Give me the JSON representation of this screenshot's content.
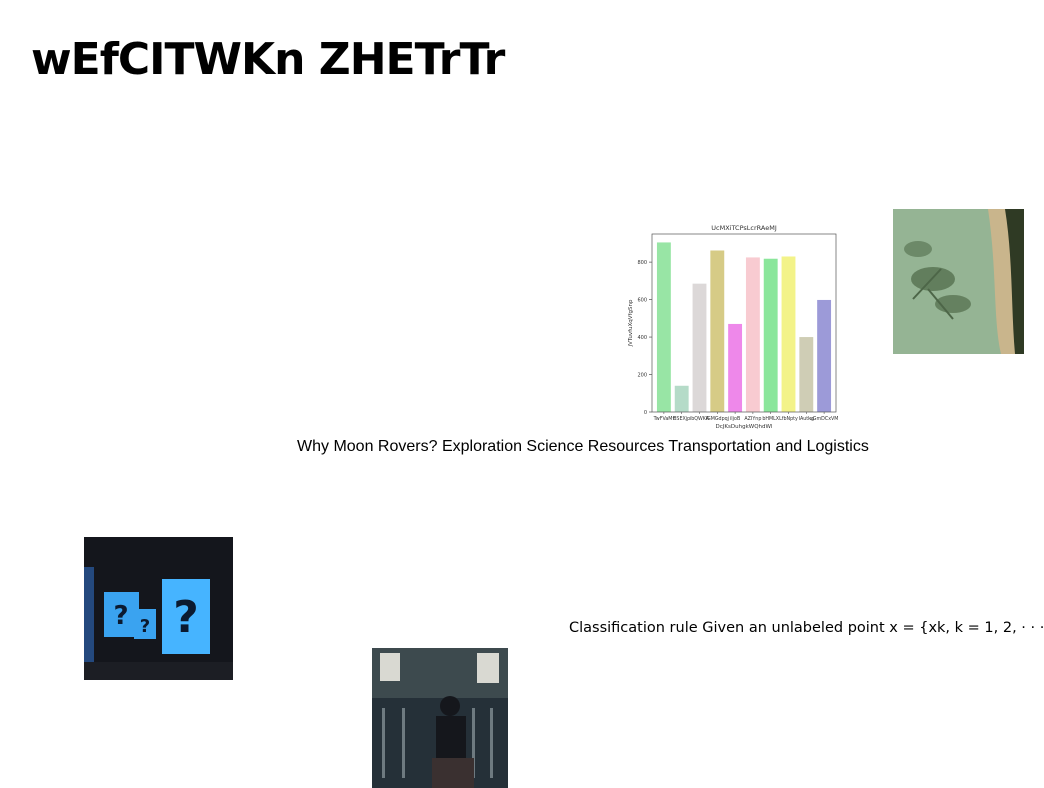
{
  "slide": {
    "title": "wEfCITWKn ZHETrTr",
    "caption": "Why Moon Rovers? Exploration Science Resources Transportation and Logistics",
    "note": "Classification rule Given an unlabeled point x = {xk, k = 1, 2, · · ·"
  },
  "images": {
    "beach": "aerial-beach-palm-shadows",
    "boxes": "glowing-question-mark-blocks",
    "person": "masked-person-by-gate"
  },
  "chart_data": {
    "type": "bar",
    "title": "UcMXiTCPsLcrRAeMJ",
    "xlabel": "DcJKsDuhgkWQhdWl",
    "ylabel": "jVTuvfuXqVfgSnp",
    "ylim": [
      0,
      950
    ],
    "yticks": [
      0,
      200,
      400,
      600,
      800
    ],
    "categories": [
      "TwFVaMf",
      "BSEXjp",
      "ibQWKA",
      "IGMGdpqj",
      "iIjoB",
      "AZIYnp",
      "bHMLX",
      "LfbNpty",
      "IAutkg",
      "uGmDCxVM"
    ],
    "values": [
      905,
      140,
      685,
      862,
      470,
      825,
      818,
      830,
      400,
      598
    ],
    "colors": [
      "#98e5a5",
      "#b5dbc8",
      "#dcd8d8",
      "#d6cb86",
      "#ee88ea",
      "#f8cbd1",
      "#8ae69b",
      "#f3f389",
      "#cfcdb5",
      "#9c9ad8"
    ]
  }
}
